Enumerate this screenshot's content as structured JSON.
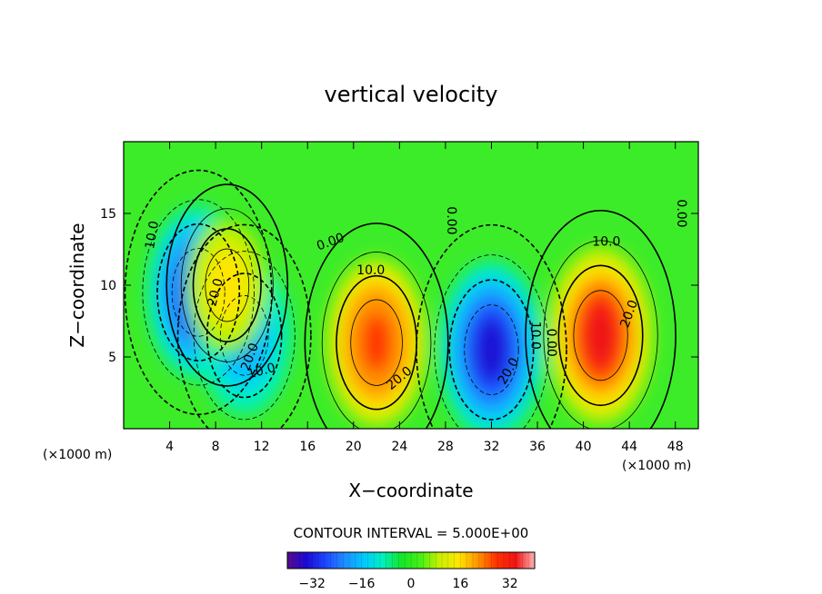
{
  "chart_data": {
    "type": "heatmap",
    "title": "vertical velocity",
    "xlabel": "X−coordinate",
    "ylabel": "Z−coordinate",
    "x_unit_left": "(×1000 m)",
    "x_unit_right": "(×1000 m)",
    "xlim": [
      0,
      50
    ],
    "ylim": [
      0,
      20
    ],
    "x_ticks": [
      4,
      8,
      12,
      16,
      20,
      24,
      28,
      32,
      36,
      40,
      44,
      48
    ],
    "y_ticks": [
      5,
      10,
      15
    ],
    "contour_interval_text": "CONTOUR INTERVAL = 5.000E+00",
    "colorbar": {
      "range": [
        -40,
        40
      ],
      "ticks": [
        -32,
        -16,
        0,
        16,
        32
      ],
      "colors": [
        "#5a0a8c",
        "#1a0ad4",
        "#1e46ff",
        "#1e8cff",
        "#00c8ff",
        "#00f0c0",
        "#14e628",
        "#46f014",
        "#c8f000",
        "#ffe600",
        "#ff9600",
        "#ff3200",
        "#f01414",
        "#ffb4b4"
      ]
    },
    "cells": [
      {
        "x": 6.5,
        "z": 9.5,
        "value": -30
      },
      {
        "x": 10.5,
        "z": 6.5,
        "value": -22
      },
      {
        "x": 9,
        "z": 10,
        "value": 15
      },
      {
        "x": 22,
        "z": 6,
        "value": 28
      },
      {
        "x": 32,
        "z": 5.5,
        "value": -32
      },
      {
        "x": 41.5,
        "z": 6.5,
        "value": 32
      }
    ],
    "contour_labels": [
      {
        "text": "10.0",
        "x": 2.5,
        "z": 13.5,
        "angle": -80
      },
      {
        "text": "20.0",
        "x": 8,
        "z": 9.5,
        "angle": -75
      },
      {
        "text": "20.0",
        "x": 11,
        "z": 5,
        "angle": -70
      },
      {
        "text": "10.0",
        "x": 12,
        "z": 4,
        "angle": -15
      },
      {
        "text": "0.00",
        "x": 18,
        "z": 13,
        "angle": -20
      },
      {
        "text": "10.0",
        "x": 21.5,
        "z": 11,
        "angle": 0
      },
      {
        "text": "20.0",
        "x": 24,
        "z": 3.5,
        "angle": -40
      },
      {
        "text": "0.00",
        "x": 28.5,
        "z": 14.5,
        "angle": 90
      },
      {
        "text": "20.0",
        "x": 33.5,
        "z": 4,
        "angle": -60
      },
      {
        "text": "10.0",
        "x": 35.8,
        "z": 6.5,
        "angle": 90
      },
      {
        "text": "0.00",
        "x": 37.2,
        "z": 6,
        "angle": 90
      },
      {
        "text": "10.0",
        "x": 42,
        "z": 13,
        "angle": 0
      },
      {
        "text": "20.0",
        "x": 44,
        "z": 8,
        "angle": -70
      },
      {
        "text": "0.00",
        "x": 48.5,
        "z": 15,
        "angle": 90
      }
    ]
  }
}
